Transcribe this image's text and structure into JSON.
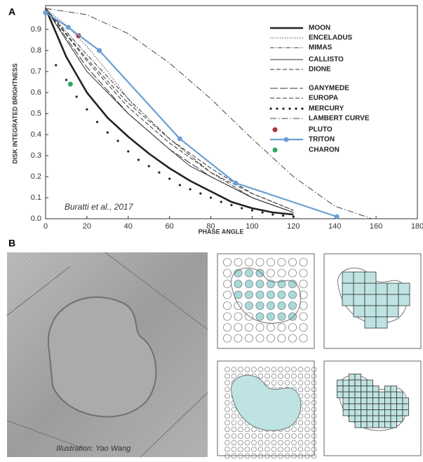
{
  "panel_a": {
    "label": "A"
  },
  "chart_data": {
    "type": "line",
    "ylabel": "DISK INTEGRATED BRIGHTNESS",
    "xlabel": "PHASE ANGLE",
    "annotation": "Buratti et al., 2017",
    "xlim": [
      0,
      180
    ],
    "ylim": [
      0,
      1
    ],
    "xticks": [
      0,
      20,
      40,
      60,
      80,
      100,
      120,
      140,
      160,
      180
    ],
    "yticks": [
      {
        "value": 0,
        "label": "0.0"
      },
      0.1,
      0.2,
      0.3,
      0.4,
      0.5,
      0.6,
      0.7,
      0.8,
      0.9
    ],
    "series": [
      {
        "name": "MOON",
        "color": "#222222",
        "style": "thick",
        "x": [
          0,
          10,
          20,
          30,
          40,
          50,
          60,
          70,
          80,
          90,
          100,
          110,
          120
        ],
        "values": [
          1.0,
          0.77,
          0.6,
          0.48,
          0.39,
          0.31,
          0.24,
          0.18,
          0.13,
          0.08,
          0.05,
          0.03,
          0.02
        ]
      },
      {
        "name": "ENCELADUS",
        "color": "#444444",
        "style": "dotted",
        "x": [
          0,
          10,
          20,
          30,
          40,
          43
        ],
        "values": [
          1.0,
          0.92,
          0.82,
          0.7,
          0.57,
          0.53
        ]
      },
      {
        "name": "MIMAS",
        "color": "#333333",
        "style": "dashdot",
        "x": [
          0,
          20,
          40,
          60,
          80,
          100,
          120
        ],
        "values": [
          1.0,
          0.78,
          0.57,
          0.38,
          0.22,
          0.1,
          0.03
        ]
      },
      {
        "name": "CALLISTO",
        "color": "#333333",
        "style": "solid",
        "x": [
          0,
          20,
          40,
          60,
          70,
          80,
          100,
          120
        ],
        "values": [
          1.0,
          0.7,
          0.5,
          0.33,
          0.25,
          0.2,
          0.1,
          0.03
        ]
      },
      {
        "name": "DIONE",
        "color": "#333333",
        "style": "dashed",
        "x": [
          0,
          20,
          40,
          60,
          80,
          100,
          120
        ],
        "values": [
          1.0,
          0.75,
          0.53,
          0.36,
          0.22,
          0.12,
          0.04
        ]
      },
      {
        "name": "GANYMEDE",
        "color": "#333333",
        "style": "longdash",
        "x": [
          0,
          20,
          40,
          60,
          80,
          100,
          120
        ],
        "values": [
          1.0,
          0.72,
          0.5,
          0.33,
          0.2,
          0.1,
          0.03
        ]
      },
      {
        "name": "EUROPA",
        "color": "#333333",
        "style": "dashed",
        "x": [
          0,
          20,
          40,
          60,
          80,
          100,
          120
        ],
        "values": [
          1.0,
          0.76,
          0.55,
          0.38,
          0.24,
          0.12,
          0.04
        ]
      },
      {
        "name": "MERCURY",
        "color": "#222222",
        "style": "points",
        "x": [
          5,
          10,
          15,
          20,
          25,
          30,
          35,
          40,
          45,
          50,
          55,
          60,
          65,
          70,
          75,
          80,
          85,
          90,
          95,
          100,
          105,
          110,
          115,
          120
        ],
        "values": [
          0.73,
          0.66,
          0.58,
          0.52,
          0.46,
          0.41,
          0.37,
          0.32,
          0.28,
          0.25,
          0.22,
          0.19,
          0.16,
          0.14,
          0.12,
          0.1,
          0.08,
          0.065,
          0.05,
          0.04,
          0.03,
          0.02,
          0.015,
          0.01
        ]
      },
      {
        "name": "LAMBERT CURVE",
        "color": "#444444",
        "style": "lambert",
        "x": [
          0,
          20,
          40,
          60,
          80,
          100,
          120,
          140,
          158
        ],
        "values": [
          1.0,
          0.97,
          0.88,
          0.74,
          0.57,
          0.38,
          0.2,
          0.06,
          0.0
        ]
      },
      {
        "name": "PLUTO",
        "color": "#b0303a",
        "style": "marker",
        "x": [
          0,
          16
        ],
        "values": [
          0.98,
          0.87
        ]
      },
      {
        "name": "TRITON",
        "color": "#6a9fd4",
        "style": "markerline",
        "x": [
          0,
          11,
          26,
          65,
          92,
          141
        ],
        "values": [
          0.98,
          0.91,
          0.8,
          0.38,
          0.17,
          0.01
        ]
      },
      {
        "name": "CHARON",
        "color": "#2fa860",
        "style": "marker",
        "x": [
          12
        ],
        "values": [
          0.64
        ]
      }
    ]
  },
  "panel_b": {
    "label": "B",
    "credit": "Illustration: Yao Wang"
  }
}
